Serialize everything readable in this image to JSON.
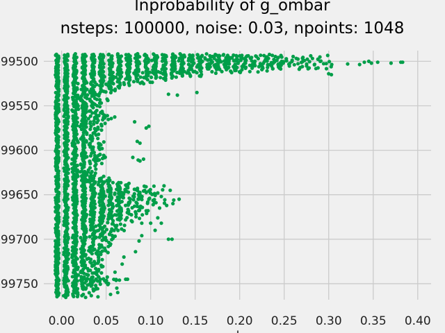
{
  "chart_data": {
    "type": "scatter",
    "title": "lnprobability of g_ombar",
    "subtitle": "nsteps: 100000, noise: 0.03, npoints: 1048",
    "xlabel": "l",
    "ylabel": "",
    "xlim": [
      -0.02,
      0.415
    ],
    "ylim": [
      -99768,
      -99488
    ],
    "x_ticks": [
      "0.00",
      "0.05",
      "0.10",
      "0.15",
      "0.20",
      "0.25",
      "0.30",
      "0.35",
      "0.40"
    ],
    "y_ticks": [
      "-99500",
      "-99550",
      "-99600",
      "-99650",
      "-99700",
      "-99750"
    ],
    "x_tick_values": [
      0,
      0.05,
      0.1,
      0.15,
      0.2,
      0.25,
      0.3,
      0.35,
      0.4
    ],
    "y_tick_values": [
      -99500,
      -99550,
      -99600,
      -99650,
      -99700,
      -99750
    ],
    "grid": true,
    "marker_color": "#009e49",
    "background_color": "#f0f0f0",
    "grid_color": "#cbcbcb",
    "series": [
      {
        "profile": [
          [
            -99492,
            0.2
          ],
          [
            -99494,
            0.33
          ],
          [
            -99496,
            0.29
          ],
          [
            -99498,
            0.35
          ],
          [
            -99500,
            0.38
          ],
          [
            -99502,
            0.36
          ],
          [
            -99504,
            0.34
          ],
          [
            -99506,
            0.31
          ],
          [
            -99508,
            0.3
          ],
          [
            -99510,
            0.26
          ],
          [
            -99512,
            0.22
          ],
          [
            -99515,
            0.18
          ],
          [
            -99518,
            0.15
          ],
          [
            -99521,
            0.12
          ],
          [
            -99524,
            0.1
          ],
          [
            -99527,
            0.08
          ],
          [
            -99530,
            0.065
          ],
          [
            -99536,
            0.055
          ],
          [
            -99545,
            0.05
          ],
          [
            -99555,
            0.045
          ],
          [
            -99562,
            0.06
          ],
          [
            -99570,
            0.05
          ],
          [
            -99580,
            0.042
          ],
          [
            -99590,
            0.048
          ],
          [
            -99595,
            0.055
          ],
          [
            -99600,
            0.045
          ],
          [
            -99608,
            0.05
          ],
          [
            -99615,
            0.045
          ],
          [
            -99625,
            0.04
          ],
          [
            -99632,
            0.06
          ],
          [
            -99640,
            0.1
          ],
          [
            -99645,
            0.12
          ],
          [
            -99650,
            0.11
          ],
          [
            -99656,
            0.13
          ],
          [
            -99662,
            0.11
          ],
          [
            -99668,
            0.1
          ],
          [
            -99676,
            0.09
          ],
          [
            -99684,
            0.075
          ],
          [
            -99692,
            0.07
          ],
          [
            -99700,
            0.06
          ],
          [
            -99708,
            0.055
          ],
          [
            -99716,
            0.05
          ],
          [
            -99724,
            0.045
          ],
          [
            -99732,
            0.05
          ],
          [
            -99740,
            0.045
          ],
          [
            -99746,
            0.07
          ],
          [
            -99752,
            0.05
          ],
          [
            -99758,
            0.04
          ],
          [
            -99764,
            0.02
          ]
        ],
        "outliers": [
          [
            0.381,
            -99501
          ],
          [
            0.383,
            -99501
          ],
          [
            0.37,
            -99502
          ],
          [
            0.355,
            -99501
          ],
          [
            0.348,
            -99502
          ],
          [
            0.345,
            -99500
          ],
          [
            0.34,
            -99501
          ],
          [
            0.303,
            -99515
          ],
          [
            0.3,
            -99514
          ],
          [
            0.152,
            -99535
          ],
          [
            0.13,
            -99538
          ],
          [
            0.12,
            -99537
          ],
          [
            0.132,
            -99655
          ],
          [
            0.125,
            -99660
          ],
          [
            0.118,
            -99662
          ],
          [
            0.122,
            -99645
          ],
          [
            0.126,
            -99656
          ],
          [
            0.12,
            -99700
          ],
          [
            0.124,
            -99700
          ],
          [
            0.1,
            -99682
          ],
          [
            0.105,
            -99690
          ],
          [
            0.098,
            -99655
          ],
          [
            0.095,
            -99668
          ],
          [
            0.09,
            -99682
          ],
          [
            0.086,
            -99611
          ],
          [
            0.088,
            -99612
          ],
          [
            0.074,
            -99745
          ],
          [
            0.072,
            -99745
          ],
          [
            0.063,
            -99760
          ],
          [
            0.055,
            -99762
          ],
          [
            0.065,
            -99746
          ],
          [
            0.062,
            -99755
          ],
          [
            0.06,
            -99533
          ],
          [
            0.076,
            -99519
          ],
          [
            0.072,
            -99520
          ],
          [
            0.098,
            -99573
          ],
          [
            0.095,
            -99575
          ],
          [
            0.082,
            -99568
          ],
          [
            0.085,
            -99590
          ],
          [
            0.088,
            -99592
          ],
          [
            0.092,
            -99610
          ],
          [
            0.08,
            -99608
          ],
          [
            0.07,
            -99720
          ],
          [
            0.068,
            -99728
          ],
          [
            0.06,
            -99737
          ],
          [
            0.083,
            -99714
          ],
          [
            0.087,
            -99702
          ],
          [
            0.09,
            -99696
          ],
          [
            0.108,
            -99648
          ],
          [
            0.112,
            -99652
          ],
          [
            0.115,
            -99640
          ],
          [
            0.11,
            -99665
          ],
          [
            0.112,
            -99682
          ],
          [
            0.108,
            -99676
          ]
        ]
      }
    ]
  }
}
